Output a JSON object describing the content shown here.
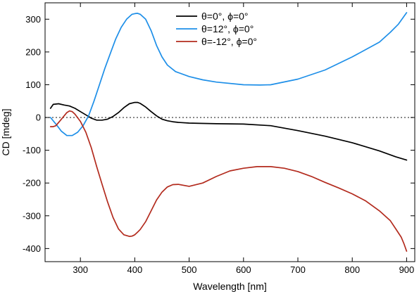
{
  "chart_data": {
    "type": "line",
    "title": "",
    "xlabel": "Wavelength [nm]",
    "ylabel": "CD [mdeg]",
    "xlim": [
      235,
      915
    ],
    "ylim": [
      -440,
      350
    ],
    "x_ticks": [
      300,
      400,
      500,
      600,
      700,
      800,
      900
    ],
    "y_ticks": [
      300,
      200,
      100,
      0,
      -100,
      -200,
      -300,
      -400
    ],
    "grid": false,
    "zero_line": "dotted",
    "legend_position": "top-center",
    "series": [
      {
        "name": "θ=0°, ϕ=0°",
        "color": "#000000",
        "x": [
          245,
          250,
          260,
          270,
          280,
          290,
          300,
          310,
          320,
          330,
          340,
          350,
          360,
          370,
          380,
          390,
          400,
          405,
          410,
          420,
          430,
          440,
          450,
          460,
          470,
          480,
          500,
          520,
          550,
          600,
          650,
          700,
          750,
          800,
          850,
          880,
          900
        ],
        "y": [
          28,
          40,
          42,
          38,
          35,
          28,
          18,
          8,
          -2,
          -8,
          -8,
          -5,
          3,
          15,
          30,
          42,
          46,
          46,
          43,
          32,
          18,
          5,
          -5,
          -10,
          -13,
          -15,
          -17,
          -18,
          -19,
          -20,
          -25,
          -40,
          -57,
          -77,
          -102,
          -120,
          -130
        ]
      },
      {
        "name": "θ=12°, ϕ=0°",
        "color": "#1e8fe8",
        "x": [
          245,
          255,
          265,
          275,
          285,
          295,
          305,
          315,
          325,
          335,
          345,
          355,
          365,
          375,
          385,
          395,
          400,
          405,
          410,
          420,
          430,
          440,
          450,
          460,
          475,
          500,
          525,
          550,
          600,
          630,
          650,
          700,
          750,
          800,
          850,
          870,
          885,
          900
        ],
        "y": [
          0,
          -20,
          -42,
          -55,
          -55,
          -45,
          -25,
          5,
          50,
          100,
          150,
          195,
          240,
          275,
          300,
          315,
          317,
          318,
          315,
          300,
          265,
          220,
          185,
          160,
          140,
          125,
          115,
          108,
          100,
          99,
          100,
          117,
          145,
          185,
          230,
          260,
          285,
          320
        ]
      },
      {
        "name": "θ=-12°, ϕ=0°",
        "color": "#b32b1e",
        "x": [
          245,
          250,
          255,
          265,
          275,
          280,
          285,
          290,
          300,
          310,
          320,
          330,
          340,
          350,
          360,
          370,
          380,
          390,
          395,
          400,
          405,
          410,
          420,
          430,
          440,
          450,
          460,
          470,
          480,
          500,
          525,
          550,
          575,
          600,
          625,
          650,
          675,
          700,
          725,
          750,
          775,
          800,
          825,
          850,
          870,
          880,
          890,
          895,
          900
        ],
        "y": [
          -28,
          -28,
          -25,
          -5,
          15,
          20,
          18,
          10,
          -12,
          -45,
          -92,
          -150,
          -205,
          -258,
          -305,
          -340,
          -358,
          -363,
          -362,
          -358,
          -350,
          -342,
          -318,
          -285,
          -252,
          -228,
          -212,
          -205,
          -204,
          -210,
          -200,
          -180,
          -163,
          -155,
          -150,
          -150,
          -155,
          -165,
          -180,
          -198,
          -215,
          -233,
          -255,
          -285,
          -315,
          -340,
          -365,
          -385,
          -408
        ]
      }
    ]
  }
}
